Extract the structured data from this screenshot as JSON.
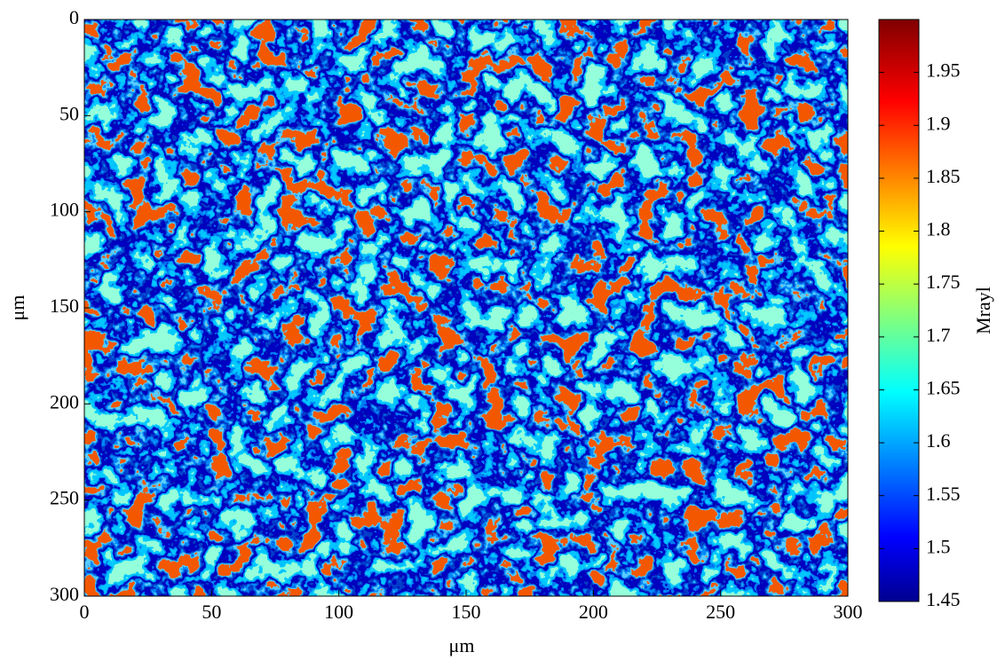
{
  "chart_data": {
    "type": "heatmap",
    "xlabel": "μm",
    "ylabel": "μm",
    "xlim": [
      0,
      300
    ],
    "ylim": [
      0,
      300
    ],
    "y_inverted": true,
    "xticks": [
      0,
      50,
      100,
      150,
      200,
      250,
      300
    ],
    "yticks": [
      0,
      50,
      100,
      150,
      200,
      250,
      300
    ],
    "colormap": "jet",
    "colorbar": {
      "label": "Mrayl",
      "clim": [
        1.45,
        2.0
      ],
      "ticks": [
        1.45,
        1.5,
        1.55,
        1.6,
        1.65,
        1.7,
        1.75,
        1.8,
        1.85,
        1.9,
        1.95
      ]
    }
  }
}
